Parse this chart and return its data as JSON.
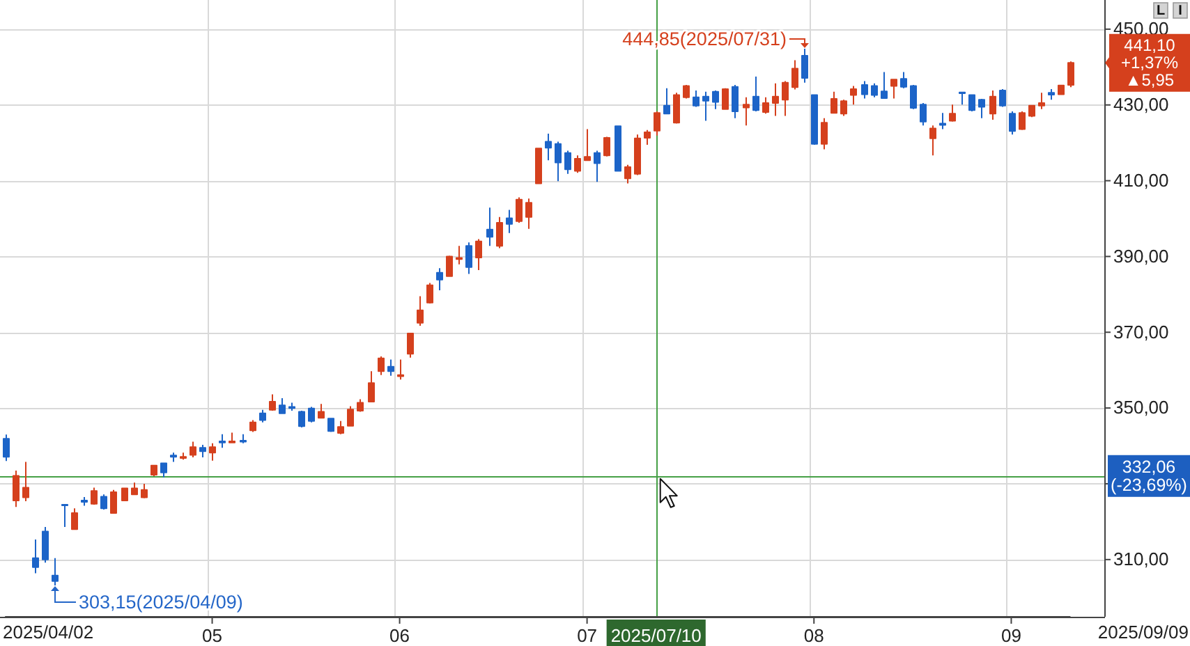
{
  "chart_data": {
    "type": "candlestick",
    "categories": [
      null,
      null,
      null,
      null,
      null,
      null,
      null,
      null,
      null,
      null,
      null,
      null,
      null,
      null,
      null,
      null,
      null,
      null,
      null,
      null,
      null,
      "05",
      null,
      null,
      null,
      null,
      null,
      null,
      null,
      null,
      null,
      null,
      null,
      null,
      null,
      null,
      null,
      null,
      null,
      null,
      "06",
      null,
      null,
      null,
      null,
      null,
      null,
      null,
      null,
      null,
      null,
      null,
      null,
      null,
      null,
      null,
      null,
      null,
      null,
      "07",
      null,
      null,
      null,
      null,
      null,
      null,
      "2025/07/10",
      null,
      null,
      null,
      null,
      null,
      null,
      null,
      null,
      null,
      null,
      null,
      null,
      null,
      null,
      null,
      "08",
      null,
      null,
      null,
      null,
      null,
      null,
      null,
      null,
      null,
      null,
      null,
      null,
      null,
      null,
      null,
      null,
      null,
      null,
      null,
      "09",
      null,
      null,
      null,
      null,
      null,
      null
    ],
    "ohlc": [
      [
        341.9,
        343.0,
        336.0,
        337.1
      ],
      [
        325.6,
        333.5,
        323.9,
        332.1
      ],
      [
        326.4,
        335.8,
        325.4,
        329.0
      ],
      [
        310.4,
        315.3,
        306.4,
        308.0
      ],
      [
        317.4,
        318.6,
        309.2,
        310.0
      ],
      [
        305.8,
        310.4,
        303.15,
        304.3
      ],
      [
        324.5,
        324.6,
        318.6,
        324.3
      ],
      [
        318.0,
        323.5,
        317.8,
        322.3
      ],
      [
        325.6,
        326.5,
        324.2,
        325.2
      ],
      [
        324.7,
        329.0,
        324.5,
        328.1
      ],
      [
        326.6,
        327.2,
        323.2,
        323.5
      ],
      [
        322.3,
        328.4,
        322.1,
        327.8
      ],
      [
        325.6,
        329.0,
        325.4,
        328.8
      ],
      [
        327.2,
        330.3,
        327.0,
        328.8
      ],
      [
        326.4,
        330.0,
        326.2,
        328.4
      ],
      [
        332.4,
        335.0,
        332.0,
        334.8
      ],
      [
        335.4,
        335.6,
        331.7,
        333.0
      ],
      [
        337.5,
        338.2,
        335.8,
        337.1
      ],
      [
        336.8,
        338.2,
        336.4,
        337.1
      ],
      [
        337.6,
        341.1,
        337.0,
        339.7
      ],
      [
        339.5,
        340.3,
        337.0,
        338.6
      ],
      [
        338.2,
        340.7,
        336.1,
        339.7
      ],
      [
        341.2,
        343.1,
        339.5,
        340.9
      ],
      [
        340.9,
        343.5,
        340.8,
        341.2
      ],
      [
        341.4,
        343.1,
        340.7,
        341.1
      ],
      [
        344.1,
        346.8,
        343.7,
        346.2
      ],
      [
        348.6,
        349.5,
        346.2,
        346.8
      ],
      [
        349.5,
        353.6,
        349.3,
        351.7
      ],
      [
        350.7,
        352.6,
        348.4,
        348.6
      ],
      [
        350.3,
        351.4,
        349.3,
        350.0
      ],
      [
        349.0,
        349.3,
        344.9,
        345.2
      ],
      [
        349.9,
        350.3,
        346.2,
        346.6
      ],
      [
        347.4,
        351.1,
        347.2,
        349.0
      ],
      [
        347.2,
        347.4,
        343.7,
        343.9
      ],
      [
        343.4,
        346.6,
        343.1,
        345.0
      ],
      [
        345.3,
        350.5,
        345.1,
        349.6
      ],
      [
        349.3,
        352.3,
        349.0,
        351.4
      ],
      [
        351.7,
        359.7,
        351.5,
        356.6
      ],
      [
        359.7,
        363.6,
        358.7,
        363.1
      ],
      [
        360.9,
        362.8,
        358.5,
        359.7
      ],
      [
        358.4,
        362.8,
        357.5,
        358.7
      ],
      [
        364.3,
        369.8,
        363.3,
        369.7
      ],
      [
        372.5,
        379.5,
        371.7,
        375.8
      ],
      [
        377.8,
        383.0,
        377.6,
        382.4
      ],
      [
        385.7,
        386.9,
        381.1,
        383.9
      ],
      [
        384.8,
        390.2,
        384.6,
        390.0
      ],
      [
        389.3,
        392.8,
        387.9,
        389.6
      ],
      [
        392.8,
        393.7,
        385.4,
        387.2
      ],
      [
        389.7,
        394.6,
        386.4,
        394.0
      ],
      [
        397.1,
        402.9,
        392.8,
        395.2
      ],
      [
        392.8,
        400.4,
        392.2,
        398.9
      ],
      [
        400.1,
        402.3,
        396.2,
        398.6
      ],
      [
        399.3,
        405.6,
        398.9,
        405.0
      ],
      [
        400.4,
        405.3,
        397.3,
        404.2
      ],
      [
        409.3,
        418.6,
        409.1,
        418.5
      ],
      [
        420.3,
        422.4,
        415.4,
        418.7
      ],
      [
        419.7,
        420.3,
        409.9,
        414.8
      ],
      [
        417.3,
        417.9,
        411.8,
        413.0
      ],
      [
        412.6,
        416.7,
        412.1,
        415.8
      ],
      [
        415.4,
        423.6,
        415.2,
        416.3
      ],
      [
        417.3,
        417.9,
        409.7,
        414.6
      ],
      [
        416.7,
        421.6,
        416.4,
        421.3
      ],
      [
        424.4,
        424.6,
        412.4,
        412.6
      ],
      [
        410.6,
        414.2,
        409.3,
        413.6
      ],
      [
        411.8,
        422.2,
        411.5,
        421.2
      ],
      [
        421.3,
        423.4,
        419.5,
        422.8
      ],
      [
        423.2,
        428.3,
        421.9,
        427.9
      ],
      [
        429.8,
        434.4,
        427.5,
        427.7
      ],
      [
        425.3,
        433.2,
        425.1,
        432.6
      ],
      [
        432.0,
        435.3,
        431.7,
        435.0
      ],
      [
        432.0,
        433.8,
        429.5,
        429.8
      ],
      [
        432.2,
        433.5,
        425.8,
        431.1
      ],
      [
        433.5,
        433.8,
        428.9,
        430.8
      ],
      [
        428.9,
        434.4,
        428.7,
        434.2
      ],
      [
        434.8,
        435.3,
        426.5,
        428.3
      ],
      [
        429.3,
        432.0,
        424.6,
        430.1
      ],
      [
        432.2,
        437.5,
        428.3,
        428.6
      ],
      [
        428.1,
        432.0,
        427.7,
        430.5
      ],
      [
        430.5,
        435.7,
        427.1,
        432.2
      ],
      [
        431.4,
        436.3,
        427.1,
        435.9
      ],
      [
        434.7,
        441.8,
        434.1,
        439.6
      ],
      [
        443.0,
        444.85,
        435.9,
        437.1
      ],
      [
        432.6,
        432.8,
        419.5,
        419.7
      ],
      [
        419.7,
        426.5,
        418.3,
        425.3
      ],
      [
        427.9,
        433.5,
        427.7,
        431.6
      ],
      [
        427.7,
        431.4,
        427.1,
        431.0
      ],
      [
        432.6,
        435.0,
        430.1,
        434.2
      ],
      [
        435.3,
        436.3,
        431.7,
        432.8
      ],
      [
        435.0,
        435.7,
        432.0,
        432.6
      ],
      [
        433.6,
        438.7,
        431.6,
        431.8
      ],
      [
        435.0,
        436.8,
        431.7,
        436.7
      ],
      [
        436.9,
        438.7,
        434.4,
        434.8
      ],
      [
        435.0,
        435.3,
        428.9,
        429.2
      ],
      [
        430.1,
        430.5,
        424.6,
        425.6
      ],
      [
        421.2,
        424.6,
        416.7,
        423.8
      ],
      [
        425.1,
        427.9,
        423.6,
        424.7
      ],
      [
        425.8,
        430.1,
        425.6,
        427.7
      ],
      [
        433.3,
        433.4,
        430.1,
        433.1
      ],
      [
        432.6,
        432.8,
        428.3,
        428.6
      ],
      [
        431.4,
        431.6,
        426.5,
        429.5
      ],
      [
        427.7,
        433.8,
        426.1,
        432.2
      ],
      [
        433.8,
        434.2,
        429.5,
        429.8
      ],
      [
        427.7,
        428.3,
        422.2,
        423.1
      ],
      [
        423.6,
        428.3,
        423.4,
        427.9
      ],
      [
        427.1,
        429.9,
        426.8,
        429.8
      ],
      [
        429.8,
        433.2,
        428.9,
        430.5
      ],
      [
        433.2,
        434.2,
        431.4,
        432.7
      ],
      [
        432.8,
        435.3,
        432.6,
        435.15
      ],
      [
        435.3,
        441.5,
        434.7,
        441.1
      ]
    ],
    "colors": [
      "#1c64c8",
      "#d5401d",
      "#d5401d",
      "#1c64c8",
      "#1c64c8",
      "#1c64c8",
      "#1c64c8",
      "#d5401d",
      "#1c64c8",
      "#d5401d",
      "#1c64c8",
      "#d5401d",
      "#d5401d",
      "#d5401d",
      "#d5401d",
      "#d5401d",
      "#1c64c8",
      "#1c64c8",
      "#d5401d",
      "#d5401d",
      "#1c64c8",
      "#d5401d",
      "#1c64c8",
      "#d5401d",
      "#1c64c8",
      "#d5401d",
      "#1c64c8",
      "#d5401d",
      "#1c64c8",
      "#1c64c8",
      "#1c64c8",
      "#1c64c8",
      "#d5401d",
      "#1c64c8",
      "#d5401d",
      "#d5401d",
      "#d5401d",
      "#d5401d",
      "#d5401d",
      "#1c64c8",
      "#d5401d",
      "#d5401d",
      "#d5401d",
      "#d5401d",
      "#1c64c8",
      "#d5401d",
      "#d5401d",
      "#1c64c8",
      "#d5401d",
      "#1c64c8",
      "#d5401d",
      "#1c64c8",
      "#d5401d",
      "#d5401d",
      "#d5401d",
      "#1c64c8",
      "#1c64c8",
      "#1c64c8",
      "#d5401d",
      "#d5401d",
      "#1c64c8",
      "#d5401d",
      "#1c64c8",
      "#d5401d",
      "#d5401d",
      "#d5401d",
      "#d5401d",
      "#1c64c8",
      "#d5401d",
      "#d5401d",
      "#1c64c8",
      "#1c64c8",
      "#1c64c8",
      "#d5401d",
      "#1c64c8",
      "#d5401d",
      "#1c64c8",
      "#d5401d",
      "#d5401d",
      "#d5401d",
      "#d5401d",
      "#1c64c8",
      "#1c64c8",
      "#d5401d",
      "#d5401d",
      "#d5401d",
      "#d5401d",
      "#1c64c8",
      "#1c64c8",
      "#1c64c8",
      "#d5401d",
      "#1c64c8",
      "#1c64c8",
      "#1c64c8",
      "#d5401d",
      "#1c64c8",
      "#d5401d",
      "#1c64c8",
      "#1c64c8",
      "#1c64c8",
      "#d5401d",
      "#1c64c8",
      "#1c64c8",
      "#d5401d",
      "#d5401d",
      "#d5401d",
      "#1c64c8",
      "#d5401d",
      "#d5401d"
    ],
    "ylim": [
      294.9,
      457.7
    ],
    "yticks": [
      {
        "value": 310,
        "label": "310,00"
      },
      {
        "value": 330,
        "label": null
      },
      {
        "value": 350,
        "label": "350,00"
      },
      {
        "value": 370,
        "label": "370,00"
      },
      {
        "value": 390,
        "label": "390,00"
      },
      {
        "value": 410,
        "label": "410,00"
      },
      {
        "value": 430,
        "label": "430,00"
      },
      {
        "value": 450,
        "label": "450,00"
      }
    ],
    "grid": true,
    "ref_lines": [
      {
        "axis": "y",
        "value": 332.06,
        "label": "332,06\n(-23,69%)",
        "color": "#46a046"
      },
      {
        "axis": "x",
        "value": "2025/07/10",
        "color": "#46a046"
      }
    ],
    "annotations": [
      "2025/04/02",
      "2025/09/09",
      "L",
      "I",
      "444,85(2025/07/31)",
      "303,15(2025/04/09)",
      "441,10\n+1,37%\n▲5,95"
    ]
  }
}
